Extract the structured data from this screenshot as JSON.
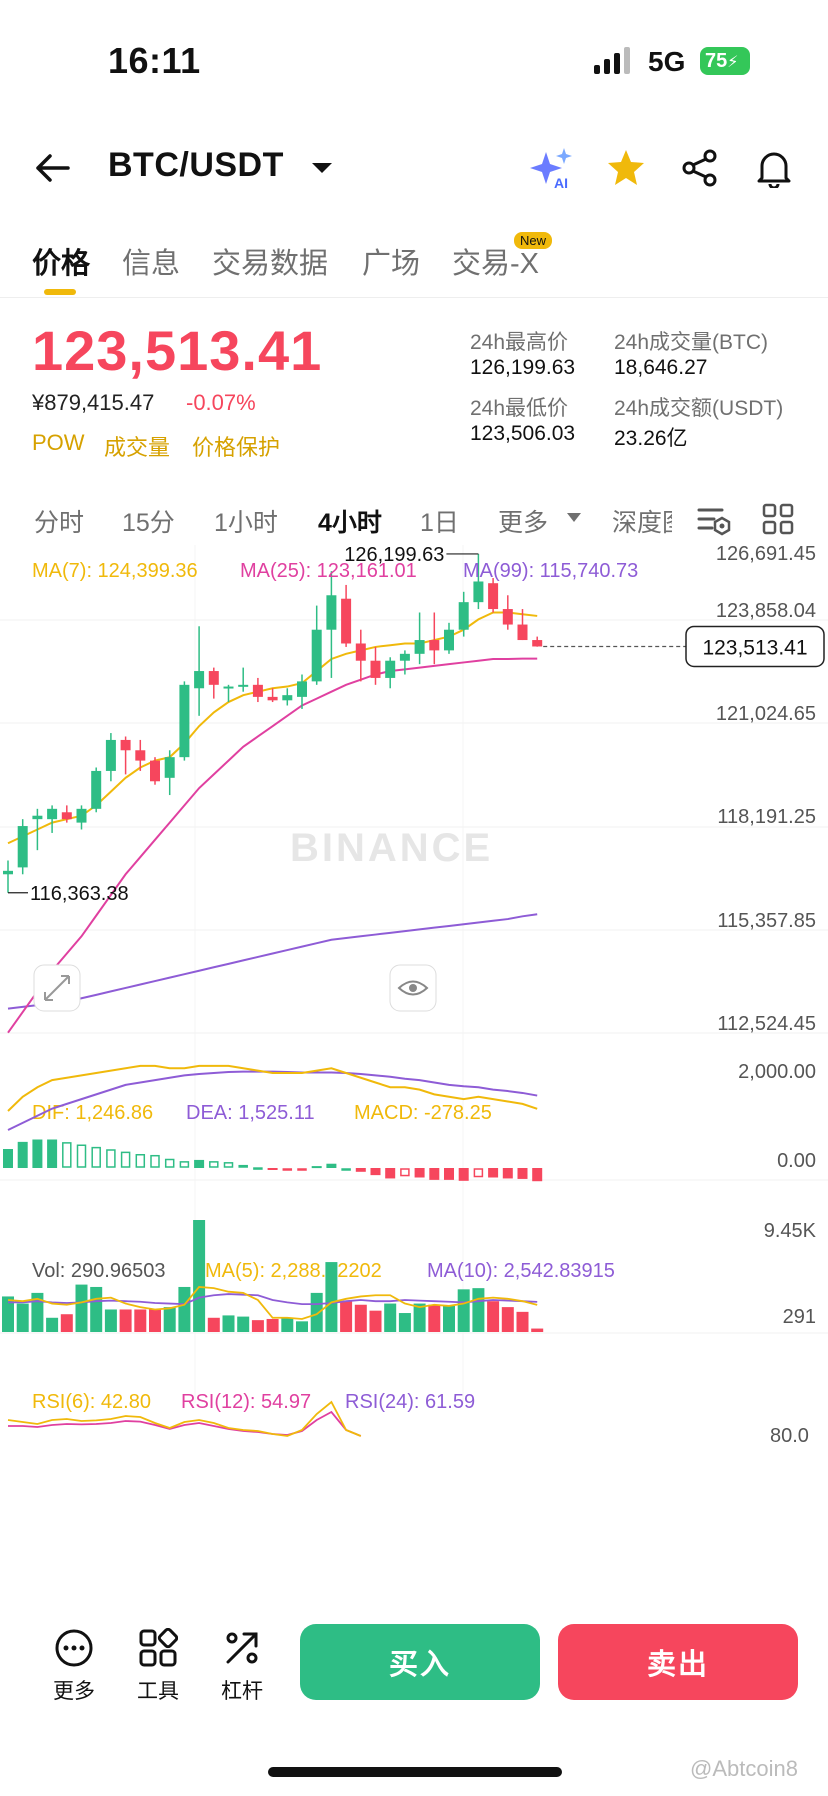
{
  "status_bar": {
    "time": "16:11",
    "network": "5G",
    "battery": "75"
  },
  "header": {
    "pair": "BTC/USDT",
    "icons": [
      "back-arrow-icon",
      "dropdown-icon",
      "ai-sparkle-icon",
      "star-icon",
      "share-icon",
      "bell-icon"
    ]
  },
  "tabs": {
    "price": "价格",
    "info": "信息",
    "trading_data": "交易数据",
    "square": "广场",
    "trade_x": "交易-X",
    "new_badge": "New"
  },
  "ticker": {
    "price": "123,513.41",
    "cny": "¥879,415.47",
    "change": "-0.07%",
    "tags": [
      "POW",
      "成交量",
      "价格保护"
    ],
    "high_label": "24h最高价",
    "high": "126,199.63",
    "low_label": "24h最低价",
    "low": "123,506.03",
    "vol_btc_label": "24h成交量(BTC)",
    "vol_btc": "18,646.27",
    "vol_usdt_label": "24h成交额(USDT)",
    "vol_usdt": "23.26亿"
  },
  "intervals": {
    "time": "分时",
    "m15": "15分",
    "h1": "1小时",
    "h4": "4小时",
    "d1": "1日",
    "more": "更多",
    "depth": "深度图"
  },
  "colors": {
    "up": "#2ebd85",
    "down": "#f6465d",
    "ma7": "#f0b90b",
    "ma25": "#e040a0",
    "ma99": "#8e5cd6",
    "accent": "#f0b90b"
  },
  "chart_data": {
    "type": "candlestick",
    "title": "BTC/USDT 4小时",
    "legend": {
      "ma7": "MA(7): 124,399.36",
      "ma25": "MA(25): 123,161.01",
      "ma99": "MA(99): 115,740.73"
    },
    "y_ticks": [
      "126,691.45",
      "123,858.04",
      "121,024.65",
      "118,191.25",
      "115,357.85",
      "112,524.45"
    ],
    "y_range": [
      112524.45,
      126691.45
    ],
    "last_price_label": "123,513.41",
    "high_marker": "126,199.63",
    "low_marker": "116,363.38",
    "watermark": "BINANCE",
    "candles": [
      {
        "o": 116900,
        "h": 117300,
        "l": 116363.38,
        "c": 117000
      },
      {
        "o": 117100,
        "h": 118500,
        "l": 116900,
        "c": 118300
      },
      {
        "o": 118500,
        "h": 118800,
        "l": 117600,
        "c": 118600
      },
      {
        "o": 118500,
        "h": 118900,
        "l": 118100,
        "c": 118800
      },
      {
        "o": 118700,
        "h": 118900,
        "l": 118400,
        "c": 118500
      },
      {
        "o": 118400,
        "h": 118900,
        "l": 118200,
        "c": 118800
      },
      {
        "o": 118800,
        "h": 120000,
        "l": 118700,
        "c": 119900
      },
      {
        "o": 119900,
        "h": 121000,
        "l": 119600,
        "c": 120800
      },
      {
        "o": 120800,
        "h": 120900,
        "l": 119800,
        "c": 120500
      },
      {
        "o": 120500,
        "h": 120800,
        "l": 119900,
        "c": 120200
      },
      {
        "o": 120200,
        "h": 120300,
        "l": 119500,
        "c": 119600
      },
      {
        "o": 119700,
        "h": 120500,
        "l": 119200,
        "c": 120300
      },
      {
        "o": 120300,
        "h": 122500,
        "l": 120200,
        "c": 122400
      },
      {
        "o": 122300,
        "h": 124100,
        "l": 121500,
        "c": 122800
      },
      {
        "o": 122800,
        "h": 122900,
        "l": 122000,
        "c": 122400
      },
      {
        "o": 122300,
        "h": 122400,
        "l": 121900,
        "c": 122350
      },
      {
        "o": 122350,
        "h": 122900,
        "l": 122200,
        "c": 122400
      },
      {
        "o": 122400,
        "h": 122600,
        "l": 121900,
        "c": 122050
      },
      {
        "o": 122050,
        "h": 122300,
        "l": 121900,
        "c": 121950
      },
      {
        "o": 121950,
        "h": 122300,
        "l": 121800,
        "c": 122100
      },
      {
        "o": 122050,
        "h": 122700,
        "l": 121700,
        "c": 122500
      },
      {
        "o": 122500,
        "h": 124700,
        "l": 122400,
        "c": 124000
      },
      {
        "o": 124000,
        "h": 125700,
        "l": 122600,
        "c": 125000
      },
      {
        "o": 124900,
        "h": 125300,
        "l": 123500,
        "c": 123600
      },
      {
        "o": 123600,
        "h": 124000,
        "l": 122500,
        "c": 123100
      },
      {
        "o": 123100,
        "h": 123500,
        "l": 122400,
        "c": 122600
      },
      {
        "o": 122600,
        "h": 123200,
        "l": 122300,
        "c": 123100
      },
      {
        "o": 123100,
        "h": 123400,
        "l": 122700,
        "c": 123300
      },
      {
        "o": 123300,
        "h": 124500,
        "l": 123000,
        "c": 123700
      },
      {
        "o": 123700,
        "h": 124500,
        "l": 123000,
        "c": 123400
      },
      {
        "o": 123400,
        "h": 124200,
        "l": 123300,
        "c": 124000
      },
      {
        "o": 124000,
        "h": 125100,
        "l": 123800,
        "c": 124800
      },
      {
        "o": 124800,
        "h": 126199.63,
        "l": 124600,
        "c": 125400
      },
      {
        "o": 125350,
        "h": 125500,
        "l": 124500,
        "c": 124600
      },
      {
        "o": 124600,
        "h": 125000,
        "l": 124000,
        "c": 124150
      },
      {
        "o": 124150,
        "h": 124600,
        "l": 123700,
        "c": 123700
      },
      {
        "o": 123700,
        "h": 123800,
        "l": 123506.03,
        "c": 123513.41
      }
    ],
    "ma7": [
      117800,
      118000,
      118200,
      118400,
      118500,
      118600,
      118900,
      119300,
      119700,
      120000,
      120200,
      120300,
      120700,
      121200,
      121600,
      121900,
      122100,
      122200,
      122300,
      122350,
      122450,
      122800,
      123150,
      123300,
      123400,
      123500,
      123550,
      123600,
      123600,
      123700,
      123800,
      124000,
      124300,
      124500,
      124500,
      124450,
      124400
    ],
    "ma25": [
      112300,
      112900,
      113500,
      114100,
      114600,
      115100,
      115700,
      116300,
      116900,
      117400,
      117900,
      118400,
      118900,
      119400,
      119800,
      120200,
      120600,
      120900,
      121200,
      121500,
      121800,
      122000,
      122200,
      122400,
      122550,
      122700,
      122800,
      122850,
      122900,
      122950,
      123000,
      123050,
      123100,
      123150,
      123150,
      123160,
      123161
    ],
    "ma99": [
      113000,
      113050,
      113100,
      113150,
      113200,
      113300,
      113400,
      113500,
      113600,
      113700,
      113800,
      113900,
      114000,
      114100,
      114200,
      114300,
      114400,
      114500,
      114600,
      114700,
      114800,
      114900,
      115000,
      115050,
      115100,
      115150,
      115200,
      115250,
      115300,
      115350,
      115400,
      115450,
      115500,
      115550,
      115600,
      115680,
      115740
    ],
    "macd": {
      "legend": {
        "dif": "DIF: 1,246.86",
        "dea": "DEA: 1,525.11",
        "macd": "MACD: -278.25"
      },
      "y_ticks": [
        "2,000.00",
        "0.00"
      ],
      "y_range": [
        -600,
        2600
      ],
      "dif": [
        1200,
        1500,
        1700,
        1850,
        1900,
        1950,
        2000,
        2050,
        2100,
        2150,
        2150,
        2100,
        2100,
        2150,
        2150,
        2150,
        2100,
        2050,
        2000,
        2000,
        2000,
        2050,
        2100,
        2000,
        1900,
        1800,
        1700,
        1700,
        1650,
        1550,
        1500,
        1450,
        1500,
        1450,
        1400,
        1350,
        1246.86
      ],
      "dea": [
        800,
        950,
        1100,
        1250,
        1350,
        1450,
        1550,
        1650,
        1750,
        1800,
        1850,
        1900,
        1950,
        1980,
        2000,
        2020,
        2030,
        2030,
        2030,
        2020,
        2010,
        2010,
        2010,
        2000,
        1980,
        1950,
        1920,
        1880,
        1850,
        1800,
        1750,
        1720,
        1700,
        1650,
        1620,
        1580,
        1525.11
      ],
      "hist": [
        400,
        550,
        600,
        600,
        550,
        500,
        450,
        400,
        350,
        300,
        280,
        200,
        150,
        170,
        150,
        130,
        70,
        20,
        -30,
        -20,
        -10,
        40,
        90,
        0,
        -80,
        -150,
        -220,
        -180,
        -200,
        -250,
        -250,
        -270,
        -200,
        -200,
        -220,
        -230,
        -278.25
      ]
    },
    "volume": {
      "legend": {
        "vol": "Vol: 290.96503",
        "ma5": "MA(5): 2,288.52202",
        "ma10": "MA(10): 2,542.83915"
      },
      "y_ticks": [
        "9.45K",
        "291"
      ],
      "y_max": 9450,
      "vol": [
        3000,
        2400,
        3300,
        1200,
        1500,
        4000,
        3800,
        1900,
        1900,
        1900,
        1900,
        2100,
        3800,
        9450,
        1200,
        1400,
        1300,
        1000,
        1100,
        1200,
        900,
        3300,
        5900,
        2600,
        2300,
        1800,
        2400,
        1600,
        2400,
        2300,
        2200,
        3600,
        3700,
        2600,
        2100,
        1700,
        290.96503
      ],
      "ma5": [
        2700,
        2600,
        2800,
        2400,
        2300,
        2500,
        2800,
        2900,
        2400,
        2100,
        1900,
        2000,
        2300,
        3800,
        3700,
        3400,
        3300,
        2700,
        1200,
        1200,
        1100,
        1500,
        2500,
        2800,
        3000,
        3100,
        3100,
        2400,
        2100,
        2300,
        2200,
        2400,
        2800,
        2900,
        2800,
        2600,
        2288.52
      ],
      "ma10": [
        2500,
        2500,
        2600,
        2500,
        2450,
        2500,
        2600,
        2650,
        2600,
        2550,
        2450,
        2400,
        2350,
        2900,
        3100,
        3200,
        3150,
        3100,
        2700,
        2500,
        2350,
        2350,
        2450,
        2600,
        2700,
        2600,
        2600,
        2700,
        2650,
        2600,
        2550,
        2500,
        2600,
        2700,
        2650,
        2600,
        2542.84
      ]
    },
    "rsi": {
      "legend": {
        "rsi6": "RSI(6): 42.80",
        "rsi12": "RSI(12): 54.97",
        "rsi24": "RSI(24): 61.59"
      },
      "y_ticks": [
        "80.0"
      ]
    }
  },
  "footer": {
    "more": "更多",
    "tools": "工具",
    "margin": "杠杆",
    "buy": "买入",
    "sell": "卖出",
    "credit": "@Abtcoin8"
  }
}
